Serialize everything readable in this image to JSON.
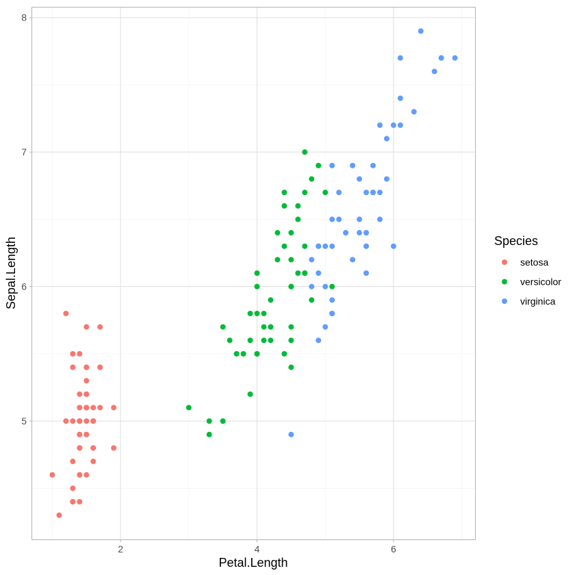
{
  "chart_data": {
    "type": "scatter",
    "title": "",
    "xlabel": "Petal.Length",
    "ylabel": "Sepal.Length",
    "xlim": [
      0.705,
      7.195
    ],
    "ylim": [
      4.12,
      8.08
    ],
    "x_major_ticks": [
      2,
      4,
      6
    ],
    "x_minor_ticks": [
      1,
      3,
      5,
      7
    ],
    "y_major_ticks": [
      5,
      6,
      7,
      8
    ],
    "y_minor_ticks": [
      4.5,
      5.5,
      6.5,
      7.5
    ],
    "grid": true,
    "legend": {
      "title": "Species",
      "placement": "right"
    },
    "series": [
      {
        "name": "setosa",
        "color": "#F8766D",
        "points": [
          [
            1.4,
            5.1
          ],
          [
            1.4,
            4.9
          ],
          [
            1.3,
            4.7
          ],
          [
            1.5,
            4.6
          ],
          [
            1.4,
            5.0
          ],
          [
            1.7,
            5.4
          ],
          [
            1.4,
            4.6
          ],
          [
            1.5,
            5.0
          ],
          [
            1.4,
            4.4
          ],
          [
            1.5,
            4.9
          ],
          [
            1.5,
            5.4
          ],
          [
            1.6,
            4.8
          ],
          [
            1.4,
            4.8
          ],
          [
            1.1,
            4.3
          ],
          [
            1.2,
            5.8
          ],
          [
            1.5,
            5.7
          ],
          [
            1.3,
            5.4
          ],
          [
            1.4,
            5.1
          ],
          [
            1.7,
            5.7
          ],
          [
            1.5,
            5.1
          ],
          [
            1.7,
            5.4
          ],
          [
            1.5,
            5.1
          ],
          [
            1.0,
            4.6
          ],
          [
            1.7,
            5.1
          ],
          [
            1.9,
            4.8
          ],
          [
            1.6,
            5.0
          ],
          [
            1.6,
            5.0
          ],
          [
            1.5,
            5.2
          ],
          [
            1.4,
            5.2
          ],
          [
            1.6,
            4.7
          ],
          [
            1.6,
            4.8
          ],
          [
            1.5,
            5.4
          ],
          [
            1.5,
            5.2
          ],
          [
            1.4,
            5.5
          ],
          [
            1.5,
            4.9
          ],
          [
            1.2,
            5.0
          ],
          [
            1.3,
            5.5
          ],
          [
            1.4,
            4.9
          ],
          [
            1.3,
            4.4
          ],
          [
            1.5,
            5.1
          ],
          [
            1.3,
            5.0
          ],
          [
            1.3,
            4.5
          ],
          [
            1.3,
            4.4
          ],
          [
            1.6,
            5.0
          ],
          [
            1.9,
            5.1
          ],
          [
            1.4,
            4.8
          ],
          [
            1.6,
            5.1
          ],
          [
            1.4,
            4.6
          ],
          [
            1.5,
            5.3
          ],
          [
            1.4,
            5.0
          ]
        ]
      },
      {
        "name": "versicolor",
        "color": "#00BA38",
        "points": [
          [
            4.7,
            7.0
          ],
          [
            4.5,
            6.4
          ],
          [
            4.9,
            6.9
          ],
          [
            4.0,
            5.5
          ],
          [
            4.6,
            6.5
          ],
          [
            4.5,
            5.7
          ],
          [
            4.7,
            6.3
          ],
          [
            3.3,
            4.9
          ],
          [
            4.6,
            6.6
          ],
          [
            3.9,
            5.2
          ],
          [
            3.5,
            5.0
          ],
          [
            4.2,
            5.9
          ],
          [
            4.0,
            6.0
          ],
          [
            4.7,
            6.1
          ],
          [
            3.6,
            5.6
          ],
          [
            4.4,
            6.7
          ],
          [
            4.5,
            5.6
          ],
          [
            4.1,
            5.8
          ],
          [
            4.5,
            6.2
          ],
          [
            3.9,
            5.6
          ],
          [
            4.8,
            5.9
          ],
          [
            4.0,
            6.1
          ],
          [
            4.9,
            6.3
          ],
          [
            4.7,
            6.1
          ],
          [
            4.3,
            6.4
          ],
          [
            4.4,
            6.6
          ],
          [
            4.8,
            6.8
          ],
          [
            5.0,
            6.7
          ],
          [
            4.5,
            6.0
          ],
          [
            3.5,
            5.7
          ],
          [
            3.8,
            5.5
          ],
          [
            3.7,
            5.5
          ],
          [
            3.9,
            5.8
          ],
          [
            5.1,
            6.0
          ],
          [
            4.5,
            5.4
          ],
          [
            4.5,
            6.0
          ],
          [
            4.7,
            6.7
          ],
          [
            4.4,
            6.3
          ],
          [
            4.1,
            5.6
          ],
          [
            4.0,
            5.5
          ],
          [
            4.4,
            5.5
          ],
          [
            4.6,
            6.1
          ],
          [
            4.0,
            5.8
          ],
          [
            3.3,
            5.0
          ],
          [
            4.2,
            5.6
          ],
          [
            4.2,
            5.7
          ],
          [
            4.2,
            5.7
          ],
          [
            4.3,
            6.2
          ],
          [
            3.0,
            5.1
          ],
          [
            4.1,
            5.7
          ]
        ]
      },
      {
        "name": "virginica",
        "color": "#619CFF",
        "points": [
          [
            6.0,
            6.3
          ],
          [
            5.1,
            5.8
          ],
          [
            5.9,
            7.1
          ],
          [
            5.6,
            6.3
          ],
          [
            5.8,
            6.5
          ],
          [
            6.6,
            7.6
          ],
          [
            4.5,
            4.9
          ],
          [
            6.3,
            7.3
          ],
          [
            5.8,
            6.7
          ],
          [
            6.1,
            7.2
          ],
          [
            5.1,
            6.5
          ],
          [
            5.3,
            6.4
          ],
          [
            5.5,
            6.8
          ],
          [
            5.0,
            5.7
          ],
          [
            5.1,
            5.8
          ],
          [
            5.3,
            6.4
          ],
          [
            5.5,
            6.5
          ],
          [
            6.7,
            7.7
          ],
          [
            6.9,
            7.7
          ],
          [
            5.0,
            6.0
          ],
          [
            5.7,
            6.9
          ],
          [
            4.9,
            5.6
          ],
          [
            6.7,
            7.7
          ],
          [
            4.9,
            6.3
          ],
          [
            5.7,
            6.7
          ],
          [
            6.0,
            7.2
          ],
          [
            4.8,
            6.2
          ],
          [
            4.9,
            6.1
          ],
          [
            5.6,
            6.4
          ],
          [
            5.8,
            7.2
          ],
          [
            6.1,
            7.4
          ],
          [
            6.4,
            7.9
          ],
          [
            5.6,
            6.4
          ],
          [
            5.1,
            6.3
          ],
          [
            5.6,
            6.1
          ],
          [
            6.1,
            7.7
          ],
          [
            5.6,
            6.3
          ],
          [
            5.5,
            6.4
          ],
          [
            4.8,
            6.0
          ],
          [
            5.4,
            6.9
          ],
          [
            5.6,
            6.7
          ],
          [
            5.1,
            6.9
          ],
          [
            5.1,
            5.8
          ],
          [
            5.9,
            6.8
          ],
          [
            5.7,
            6.7
          ],
          [
            5.2,
            6.7
          ],
          [
            5.0,
            6.3
          ],
          [
            5.2,
            6.5
          ],
          [
            5.4,
            6.2
          ],
          [
            5.1,
            5.9
          ]
        ]
      }
    ]
  }
}
